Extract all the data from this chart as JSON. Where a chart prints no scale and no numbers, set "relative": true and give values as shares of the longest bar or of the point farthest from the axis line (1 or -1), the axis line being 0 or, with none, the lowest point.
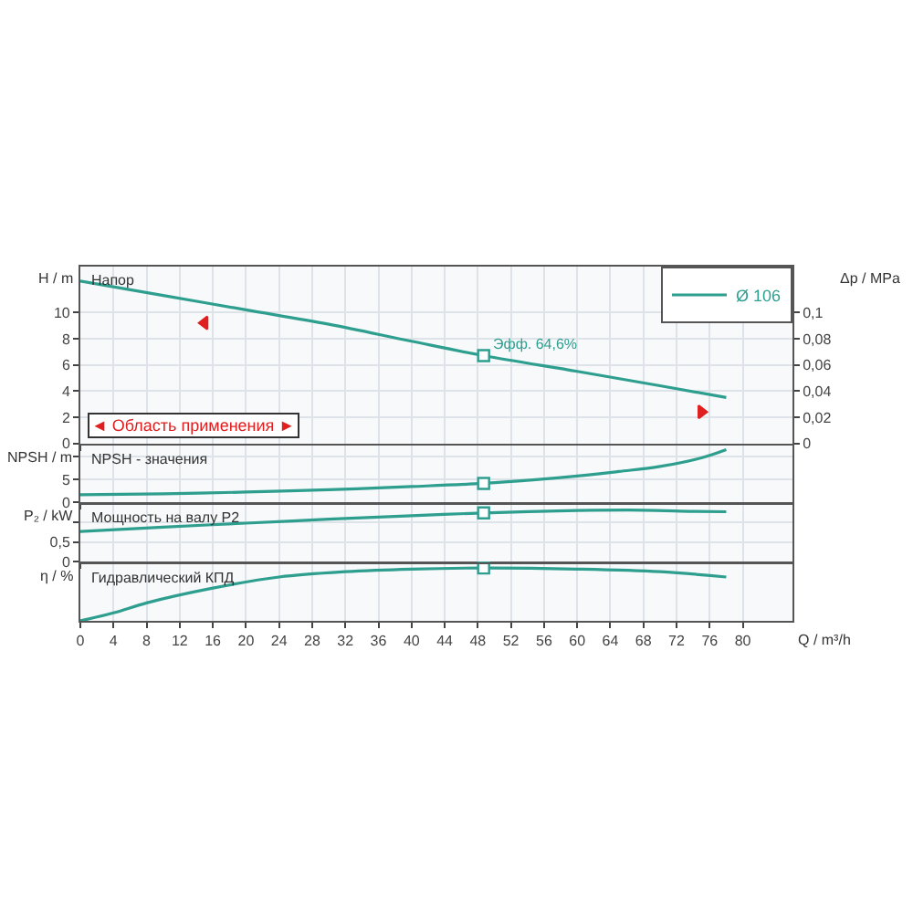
{
  "chart_data": [
    {
      "type": "line",
      "ylabel": "H / m",
      "y2label": "Δp / MPa",
      "xlim": [
        0,
        86
      ],
      "xticks": [
        0,
        4,
        8,
        12,
        16,
        20,
        24,
        28,
        32,
        36,
        40,
        44,
        48,
        52,
        56,
        60,
        64,
        68,
        72,
        76,
        80
      ],
      "ylim": [
        0,
        13.5
      ],
      "yticks": [
        0,
        2,
        4,
        6,
        8,
        10
      ],
      "y2lim": [
        0,
        0.135
      ],
      "y2ticks": [
        0,
        {
          "value": 0.02,
          "label": "0,02"
        },
        {
          "value": 0.04,
          "label": "0,04"
        },
        {
          "value": 0.06,
          "label": "0,06"
        },
        {
          "value": 0.08,
          "label": "0,08"
        },
        {
          "value": 0.1,
          "label": "0,1"
        }
      ],
      "grid": true,
      "legend": "top right",
      "tick_labels": "y",
      "annotations": [
        "Напор",
        "◄ Область применения ►",
        {
          "text": "Эфф. 64,6%",
          "x": 48.7,
          "y": 6.7
        }
      ],
      "series": [
        {
          "name": "Ø 106",
          "color": "#2e9e8f",
          "x": [
            0,
            10,
            20,
            30,
            40,
            48.7,
            60,
            70,
            78
          ],
          "values": [
            12.4,
            11.3,
            10.2,
            9.1,
            7.8,
            6.7,
            5.5,
            4.4,
            3.5
          ]
        },
        {
          "type": "scatter",
          "marker": "square",
          "color": "#2e9e8f",
          "x": [
            48.7
          ],
          "values": [
            6.7
          ]
        },
        {
          "type": "scatter",
          "marker": "triangle",
          "color": "#e02020",
          "x": [
            15,
            75
          ],
          "values": [
            9.2,
            2.4
          ]
        }
      ]
    },
    {
      "type": "line",
      "ylabel": "NPSH / m",
      "xlim": [
        0,
        86
      ],
      "xticks": [
        0,
        4,
        8,
        12,
        16,
        20,
        24,
        28,
        32,
        36,
        40,
        44,
        48,
        52,
        56,
        60,
        64,
        68,
        72,
        76,
        80
      ],
      "ylim": [
        0,
        12.5
      ],
      "yticks": [
        0,
        5,
        {
          "value": 10,
          "label": null
        }
      ],
      "grid": true,
      "tick_labels": "y",
      "annotations": [
        "NPSH - значения"
      ],
      "series": [
        {
          "color": "#2e9e8f",
          "x": [
            0,
            10,
            20,
            30,
            40,
            48.7,
            55,
            60,
            65,
            70,
            75,
            78
          ],
          "values": [
            1.7,
            1.9,
            2.3,
            2.8,
            3.5,
            4.2,
            5,
            5.8,
            6.8,
            7.9,
            9.8,
            11.6
          ]
        },
        {
          "type": "scatter",
          "marker": "square",
          "color": "#2e9e8f",
          "x": [
            48.7
          ],
          "values": [
            4.2
          ]
        }
      ]
    },
    {
      "type": "line",
      "ylabel": "P₂ / kW",
      "xlim": [
        0,
        86
      ],
      "xticks": [
        0,
        4,
        8,
        12,
        16,
        20,
        24,
        28,
        32,
        36,
        40,
        44,
        48,
        52,
        56,
        60,
        64,
        68,
        72,
        76,
        80
      ],
      "ylim": [
        0,
        1.45
      ],
      "yticks": [
        0,
        {
          "value": 0.5,
          "label": "0,5"
        },
        {
          "value": 1,
          "label": null
        }
      ],
      "grid": true,
      "tick_labels": "y",
      "annotations": [
        "Мощность на валу P2"
      ],
      "series": [
        {
          "color": "#2e9e8f",
          "x": [
            0,
            10,
            20,
            30,
            40,
            48.7,
            60,
            68,
            74,
            78
          ],
          "values": [
            0.77,
            0.88,
            0.98,
            1.08,
            1.17,
            1.24,
            1.3,
            1.31,
            1.28,
            1.27
          ]
        },
        {
          "type": "scatter",
          "marker": "square",
          "color": "#2e9e8f",
          "x": [
            48.7
          ],
          "values": [
            1.24
          ]
        }
      ]
    },
    {
      "type": "line",
      "ylabel": "η / %",
      "xlabel": "Q / m³/h",
      "relative": true,
      "xlim": [
        0,
        86
      ],
      "xticks": [
        0,
        4,
        8,
        12,
        16,
        20,
        24,
        28,
        32,
        36,
        40,
        44,
        48,
        52,
        56,
        60,
        64,
        68,
        72,
        76,
        80
      ],
      "grid": true,
      "tick_labels": "x",
      "annotations": [
        "Гидравлический КПД"
      ],
      "series": [
        {
          "color": "#2e9e8f",
          "x": [
            0,
            4,
            8,
            16,
            24,
            32,
            40,
            48.7,
            60,
            70,
            78
          ],
          "values": [
            0,
            0.15,
            0.34,
            0.62,
            0.83,
            0.93,
            0.98,
            1,
            0.98,
            0.93,
            0.83
          ]
        },
        {
          "type": "scatter",
          "marker": "square",
          "color": "#2e9e8f",
          "x": [
            48.7
          ],
          "values": [
            1
          ]
        }
      ]
    }
  ]
}
